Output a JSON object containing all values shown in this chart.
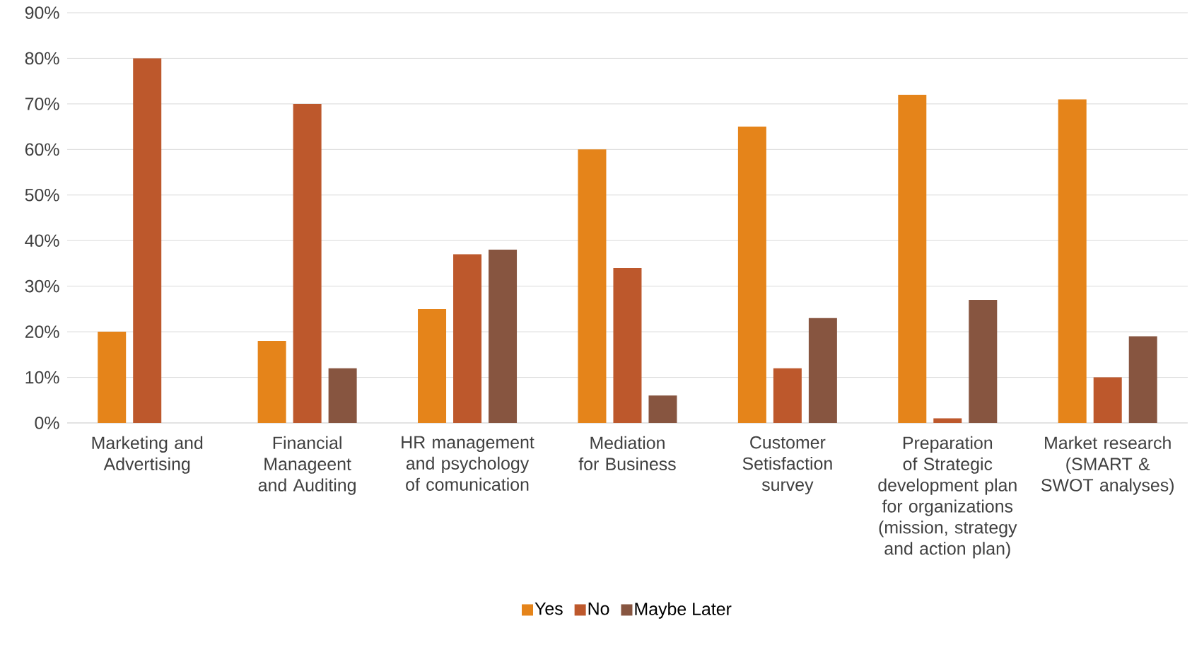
{
  "chart_data": {
    "type": "bar",
    "categories": [
      "Marketing and Advertising",
      "Financial Manageent and Auditing",
      "HR management and psychology of comunication",
      "Mediation for Business",
      "Customer Setisfaction survey",
      "Preparation of Strategic development plan for organizations (mission, strategy and action plan)",
      "Market research (SMART & SWOT analyses)"
    ],
    "series": [
      {
        "name": "Yes",
        "color": "#e5841a",
        "values": [
          20,
          18,
          25,
          60,
          65,
          72,
          71
        ]
      },
      {
        "name": "No",
        "color": "#bd582c",
        "values": [
          80,
          70,
          37,
          34,
          12,
          1,
          10
        ]
      },
      {
        "name": "Maybe Later",
        "color": "#875540",
        "values": [
          null,
          12,
          38,
          6,
          23,
          27,
          19
        ]
      }
    ],
    "ylim": [
      0,
      90
    ],
    "yticks": [
      {
        "value": 0,
        "label": "0%"
      },
      {
        "value": 10,
        "label": "10%"
      },
      {
        "value": 20,
        "label": "20%"
      },
      {
        "value": 30,
        "label": "30%"
      },
      {
        "value": 40,
        "label": "40%"
      },
      {
        "value": 50,
        "label": "50%"
      },
      {
        "value": 60,
        "label": "60%"
      },
      {
        "value": 70,
        "label": "70%"
      },
      {
        "value": 80,
        "label": "80%"
      },
      {
        "value": 90,
        "label": "90%"
      }
    ],
    "grid": "y",
    "legend": "bottom"
  }
}
